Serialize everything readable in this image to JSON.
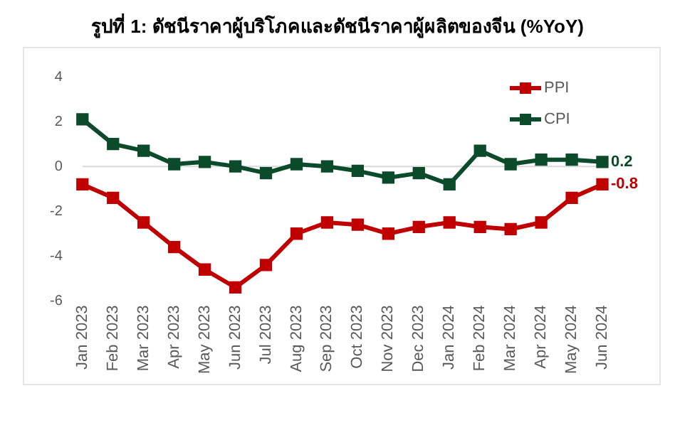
{
  "chart_data": {
    "type": "line",
    "title": "รูปที่ 1: ดัชนีราคาผู้บริโภคและดัชนีราคาผู้ผลิตของจีน (%YoY)",
    "categories": [
      "Jan 2023",
      "Feb 2023",
      "Mar 2023",
      "Apr 2023",
      "May 2023",
      "Jun 2023",
      "Jul 2023",
      "Aug 2023",
      "Sep 2023",
      "Oct 2023",
      "Nov 2023",
      "Dec 2023",
      "Jan 2024",
      "Feb 2024",
      "Mar 2024",
      "Apr 2024",
      "May 2024",
      "Jun 2024"
    ],
    "series": [
      {
        "name": "PPI",
        "color": "#c00000",
        "values": [
          -0.8,
          -1.4,
          -2.5,
          -3.6,
          -4.6,
          -5.4,
          -4.4,
          -3.0,
          -2.5,
          -2.6,
          -3.0,
          -2.7,
          -2.5,
          -2.7,
          -2.8,
          -2.5,
          -1.4,
          -0.8
        ],
        "value_labels": [
          null,
          null,
          null,
          null,
          null,
          null,
          null,
          null,
          null,
          null,
          null,
          null,
          null,
          null,
          null,
          null,
          null,
          "-0.8"
        ]
      },
      {
        "name": "CPI",
        "color": "#0b4a2a",
        "values": [
          2.1,
          1.0,
          0.7,
          0.1,
          0.2,
          0.0,
          -0.3,
          0.1,
          0.0,
          -0.2,
          -0.5,
          -0.3,
          -0.8,
          0.7,
          0.1,
          0.3,
          0.3,
          0.2
        ],
        "value_labels": [
          null,
          null,
          null,
          null,
          null,
          null,
          null,
          null,
          null,
          null,
          null,
          null,
          null,
          null,
          null,
          null,
          null,
          "0.2"
        ]
      }
    ],
    "ylim": [
      -6,
      4
    ],
    "yticks": [
      -6,
      -4,
      -2,
      0,
      2,
      4
    ],
    "ref_lines": [
      {
        "axis": "y",
        "value": 0,
        "color": "#d9d9d9"
      }
    ],
    "grid": false,
    "legend": "top right",
    "marker": "square",
    "line_style": "solid"
  }
}
